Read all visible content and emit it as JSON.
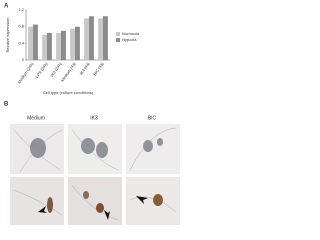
{
  "panel_a": {
    "label": "A"
  },
  "chart_data": {
    "type": "bar",
    "y_label": "Relative expression",
    "x_label": "Cell type (culture conditions)",
    "categories": [
      "Medium (24h)",
      "LPS (24h)",
      "IK3 (24h)",
      "Medium (4d)",
      "IK3 (4d)",
      "BIC (4d)"
    ],
    "series": [
      {
        "name": "Normoxia",
        "color": "#c8c8c8",
        "values": [
          0.8,
          0.6,
          0.65,
          0.75,
          1.0,
          1.0
        ]
      },
      {
        "name": "Hypoxia",
        "color": "#8c8c8c",
        "values": [
          0.85,
          0.65,
          0.7,
          0.8,
          1.05,
          1.05
        ]
      }
    ],
    "ylim": [
      0,
      1.2
    ],
    "yticks": [
      0,
      0.4,
      0.8,
      1.2
    ],
    "legend": "right"
  },
  "panel_b": {
    "label": "B",
    "columns": [
      "Medium",
      "IK3",
      "BIC"
    ]
  }
}
